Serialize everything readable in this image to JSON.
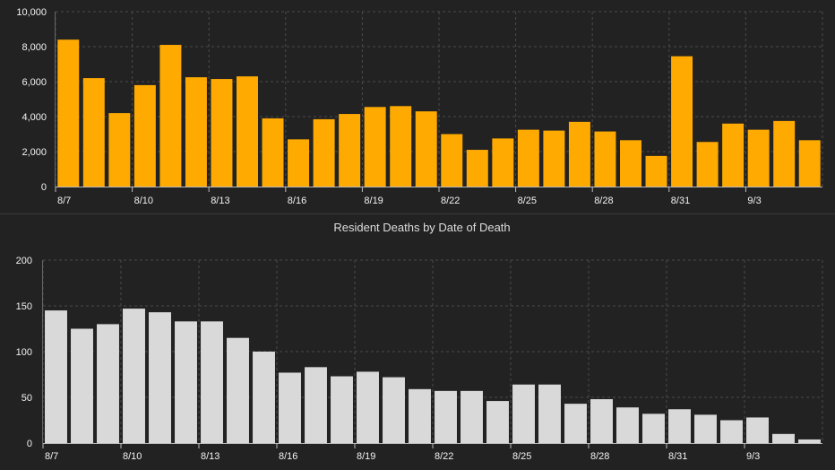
{
  "colors": {
    "background": "#222222",
    "cases_bar": "#ffaa00",
    "deaths_bar": "#d9d9d9",
    "grid": "#4a4a4a",
    "text": "#f2f2f2"
  },
  "chart_data": [
    {
      "type": "bar",
      "title": "",
      "xlabel": "",
      "ylabel": "",
      "categories": [
        "8/7",
        "8/8",
        "8/9",
        "8/10",
        "8/11",
        "8/12",
        "8/13",
        "8/14",
        "8/15",
        "8/16",
        "8/17",
        "8/18",
        "8/19",
        "8/20",
        "8/21",
        "8/22",
        "8/23",
        "8/24",
        "8/25",
        "8/26",
        "8/27",
        "8/28",
        "8/29",
        "8/30",
        "8/31",
        "9/1",
        "9/2",
        "9/3",
        "9/4",
        "9/5"
      ],
      "values": [
        8400,
        6200,
        4200,
        5800,
        8100,
        6250,
        6150,
        6300,
        3900,
        2700,
        3850,
        4150,
        4550,
        4600,
        4300,
        3000,
        2100,
        2750,
        3250,
        3200,
        3700,
        3150,
        2650,
        1750,
        7450,
        2550,
        3600,
        3250,
        3750,
        2650
      ],
      "ylim": [
        0,
        10000
      ],
      "yticks": [
        0,
        2000,
        4000,
        6000,
        8000,
        10000
      ],
      "ytick_labels": [
        "0",
        "2,000",
        "4,000",
        "6,000",
        "8,000",
        "10,000"
      ],
      "xtick_labels": [
        "8/7",
        "8/10",
        "8/13",
        "8/16",
        "8/19",
        "8/22",
        "8/25",
        "8/28",
        "8/31",
        "9/3"
      ],
      "grid": true,
      "legend": "none"
    },
    {
      "type": "bar",
      "title": "Resident Deaths by Date of Death",
      "xlabel": "",
      "ylabel": "",
      "categories": [
        "8/7",
        "8/8",
        "8/9",
        "8/10",
        "8/11",
        "8/12",
        "8/13",
        "8/14",
        "8/15",
        "8/16",
        "8/17",
        "8/18",
        "8/19",
        "8/20",
        "8/21",
        "8/22",
        "8/23",
        "8/24",
        "8/25",
        "8/26",
        "8/27",
        "8/28",
        "8/29",
        "8/30",
        "8/31",
        "9/1",
        "9/2",
        "9/3",
        "9/4",
        "9/5"
      ],
      "values": [
        145,
        125,
        130,
        147,
        143,
        133,
        133,
        115,
        100,
        77,
        83,
        73,
        78,
        72,
        59,
        57,
        57,
        46,
        64,
        64,
        43,
        48,
        39,
        32,
        37,
        31,
        25,
        28,
        10,
        4
      ],
      "ylim": [
        0,
        200
      ],
      "yticks": [
        0,
        50,
        100,
        150,
        200
      ],
      "ytick_labels": [
        "0",
        "50",
        "100",
        "150",
        "200"
      ],
      "xtick_labels": [
        "8/7",
        "8/10",
        "8/13",
        "8/16",
        "8/19",
        "8/22",
        "8/25",
        "8/28",
        "8/31",
        "9/3"
      ],
      "grid": true,
      "legend": "none"
    }
  ]
}
